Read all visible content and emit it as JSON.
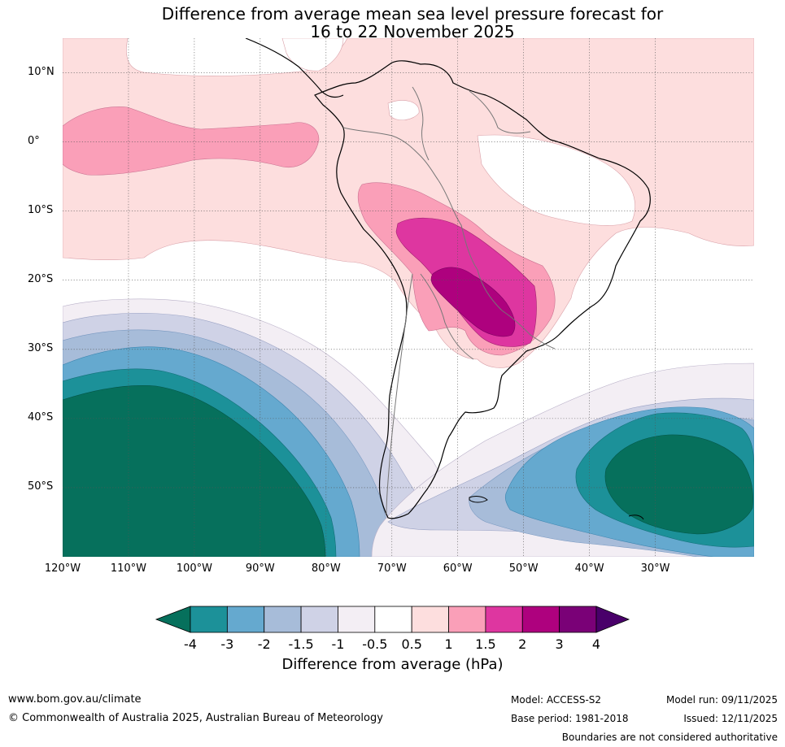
{
  "title": {
    "line1": "Difference from average mean sea level pressure forecast for",
    "line2": "16 to 22 November 2025"
  },
  "map": {
    "lat_labels": [
      "10°N",
      "0°",
      "10°S",
      "20°S",
      "30°S",
      "40°S",
      "50°S"
    ],
    "lon_labels": [
      "120°W",
      "110°W",
      "100°W",
      "90°W",
      "80°W",
      "70°W",
      "60°W",
      "50°W",
      "40°W",
      "30°W"
    ]
  },
  "colorbar": {
    "label": "Difference from average (hPa)",
    "ticks": [
      "-4",
      "-3",
      "-2",
      "-1.5",
      "-1",
      "-0.5",
      "0.5",
      "1",
      "1.5",
      "2",
      "3",
      "4"
    ],
    "colors": {
      "lt_-4": "#06705c",
      "-4_-3": "#1c9199",
      "-3_-2": "#65a9cf",
      "-2_-1.5": "#a7bcd9",
      "-1.5_-1": "#cfd2e6",
      "-1_-0.5": "#f3eef4",
      "-0.5_0.5": "#ffffff",
      "0.5_1": "#fddede",
      "1_1.5": "#fa9fb8",
      "1.5_2": "#de36a0",
      "2_3": "#ae017e",
      "3_4": "#7a0177",
      "gt_4": "#49006a"
    }
  },
  "footer": {
    "website": "www.bom.gov.au/climate",
    "copyright": "© Commonwealth of Australia 2025, Australian Bureau of Meteorology",
    "model": "Model: ACCESS-S2",
    "base_period": "Base period: 1981-2018",
    "model_run": "Model run: 09/11/2025",
    "issued": "Issued: 12/11/2025",
    "disclaimer": "Boundaries are not considered authoritative"
  }
}
